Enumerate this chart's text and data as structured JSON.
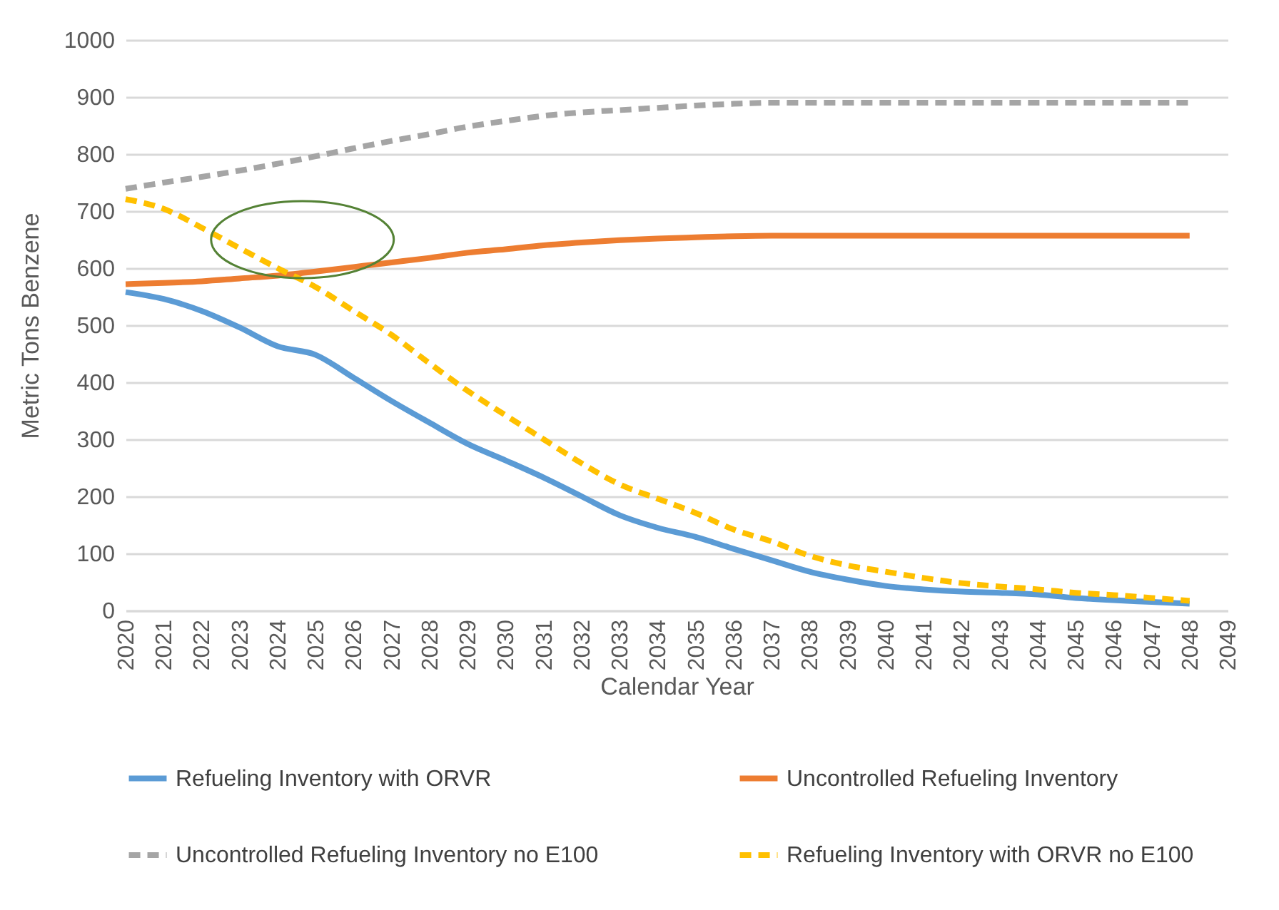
{
  "chart_data": {
    "type": "line",
    "xlabel": "Calendar Year",
    "ylabel": "Metric Tons Benzene",
    "x": [
      2020,
      2021,
      2022,
      2023,
      2024,
      2025,
      2026,
      2027,
      2028,
      2029,
      2030,
      2031,
      2032,
      2033,
      2034,
      2035,
      2036,
      2037,
      2038,
      2039,
      2040,
      2041,
      2042,
      2043,
      2044,
      2045,
      2046,
      2047,
      2048
    ],
    "xlim": [
      2020,
      2049
    ],
    "xticks": [
      2020,
      2021,
      2022,
      2023,
      2024,
      2025,
      2026,
      2027,
      2028,
      2029,
      2030,
      2031,
      2032,
      2033,
      2034,
      2035,
      2036,
      2037,
      2038,
      2039,
      2040,
      2041,
      2042,
      2043,
      2044,
      2045,
      2046,
      2047,
      2048,
      2049
    ],
    "ylim": [
      0,
      1000
    ],
    "yticks": [
      0,
      100,
      200,
      300,
      400,
      500,
      600,
      700,
      800,
      900,
      1000
    ],
    "grid": "y",
    "legend": "bottom",
    "marker": "none",
    "series": [
      {
        "name": "Refueling Inventory with ORVR",
        "color": "#5b9bd5",
        "line_style": "solid",
        "values": [
          558,
          546,
          525,
          496,
          463,
          448,
          408,
          367,
          329,
          292,
          263,
          233,
          200,
          167,
          145,
          129,
          108,
          88,
          68,
          54,
          43,
          37,
          33,
          31,
          28,
          22,
          18,
          15,
          12
        ]
      },
      {
        "name": "Uncontrolled Refueling Inventory",
        "color": "#ed7d31",
        "line_style": "solid",
        "values": [
          572,
          574,
          577,
          582,
          587,
          594,
          602,
          610,
          618,
          627,
          633,
          640,
          645,
          649,
          652,
          654,
          656,
          657,
          657,
          657,
          657,
          657,
          657,
          657,
          657,
          657,
          657,
          657,
          657
        ]
      },
      {
        "name": "Uncontrolled Refueling Inventory no E100",
        "color": "#a5a5a5",
        "line_style": "dashed",
        "values": [
          739,
          750,
          760,
          771,
          783,
          796,
          810,
          823,
          835,
          848,
          858,
          867,
          873,
          877,
          881,
          885,
          888,
          890,
          890,
          890,
          890,
          890,
          890,
          890,
          890,
          890,
          890,
          890,
          890
        ]
      },
      {
        "name": "Refueling Inventory with ORVR no E100",
        "color": "#ffc000",
        "line_style": "dashed",
        "values": [
          721,
          704,
          671,
          635,
          600,
          567,
          525,
          483,
          433,
          385,
          342,
          300,
          258,
          221,
          196,
          171,
          142,
          121,
          96,
          79,
          68,
          57,
          48,
          42,
          37,
          31,
          27,
          22,
          17
        ]
      }
    ]
  }
}
